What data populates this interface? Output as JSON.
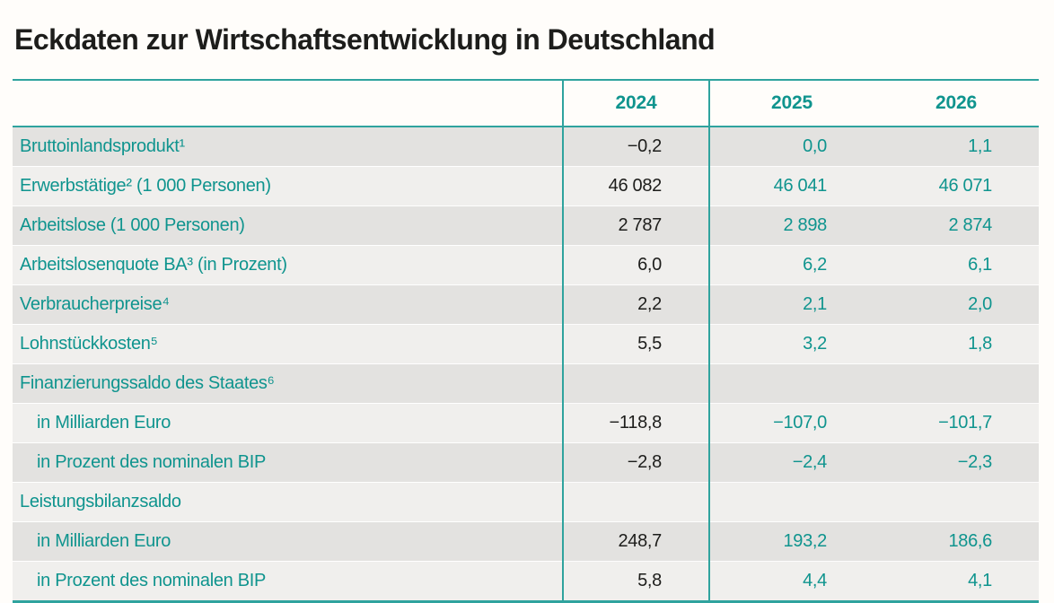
{
  "page": {
    "title": "Eckdaten zur Wirtschaftsentwicklung in Deutschland"
  },
  "colors": {
    "accent_teal_text": "#0f948e",
    "border_teal": "#2fa39e",
    "row_stripe_dark": "#e3e2e0",
    "row_stripe_light": "#f0efed",
    "value_2024_text": "#1d1d1b",
    "page_background": "#fffdfa"
  },
  "table": {
    "columns": [
      "2024",
      "2025",
      "2026"
    ],
    "rows": [
      {
        "label": "Bruttoinlandsprodukt¹",
        "values": [
          "−0,2",
          "0,0",
          "1,1"
        ]
      },
      {
        "label": "Erwerbstätige² (1 000 Personen)",
        "values": [
          "46 082",
          "46 041",
          "46 071"
        ]
      },
      {
        "label": "Arbeitslose (1 000 Personen)",
        "values": [
          "2 787",
          "2 898",
          "2 874"
        ]
      },
      {
        "label": "Arbeitslosenquote BA³ (in Prozent)",
        "values": [
          "6,0",
          "6,2",
          "6,1"
        ]
      },
      {
        "label": "Verbraucherpreise⁴",
        "values": [
          "2,2",
          "2,1",
          "2,0"
        ]
      },
      {
        "label": "Lohnstückkosten⁵",
        "values": [
          "5,5",
          "3,2",
          "1,8"
        ]
      },
      {
        "label": "Finanzierungssaldo des Staates⁶",
        "values": [
          "",
          "",
          ""
        ]
      },
      {
        "label": "in Milliarden Euro",
        "values": [
          "−118,8",
          "−107,0",
          "−101,7"
        ]
      },
      {
        "label": "in Prozent des nominalen BIP",
        "values": [
          "−2,8",
          "−2,4",
          "−2,3"
        ]
      },
      {
        "label": "Leistungsbilanzsaldo",
        "values": [
          "",
          "",
          ""
        ]
      },
      {
        "label": "in Milliarden Euro",
        "values": [
          "248,7",
          "193,2",
          "186,6"
        ]
      },
      {
        "label": "in Prozent des nominalen BIP",
        "values": [
          "5,8",
          "4,4",
          "4,1"
        ]
      }
    ]
  },
  "chart_data": {
    "type": "table",
    "title": "Eckdaten zur Wirtschaftsentwicklung in Deutschland",
    "columns": [
      "2024",
      "2025",
      "2026"
    ],
    "rows": [
      {
        "indicator": "Bruttoinlandsprodukt¹",
        "2024": -0.2,
        "2025": 0.0,
        "2026": 1.1
      },
      {
        "indicator": "Erwerbstätige² (1 000 Personen)",
        "2024": 46082,
        "2025": 46041,
        "2026": 46071
      },
      {
        "indicator": "Arbeitslose (1 000 Personen)",
        "2024": 2787,
        "2025": 2898,
        "2026": 2874
      },
      {
        "indicator": "Arbeitslosenquote BA³ (in Prozent)",
        "2024": 6.0,
        "2025": 6.2,
        "2026": 6.1
      },
      {
        "indicator": "Verbraucherpreise⁴",
        "2024": 2.2,
        "2025": 2.1,
        "2026": 2.0
      },
      {
        "indicator": "Lohnstückkosten⁵",
        "2024": 5.5,
        "2025": 3.2,
        "2026": 1.8
      },
      {
        "indicator": "Finanzierungssaldo des Staates⁶ — in Milliarden Euro",
        "2024": -118.8,
        "2025": -107.0,
        "2026": -101.7
      },
      {
        "indicator": "Finanzierungssaldo des Staates⁶ — in Prozent des nominalen BIP",
        "2024": -2.8,
        "2025": -2.4,
        "2026": -2.3
      },
      {
        "indicator": "Leistungsbilanzsaldo — in Milliarden Euro",
        "2024": 248.7,
        "2025": 193.2,
        "2026": 186.6
      },
      {
        "indicator": "Leistungsbilanzsaldo — in Prozent des nominalen BIP",
        "2024": 5.8,
        "2025": 4.4,
        "2026": 4.1
      }
    ]
  }
}
